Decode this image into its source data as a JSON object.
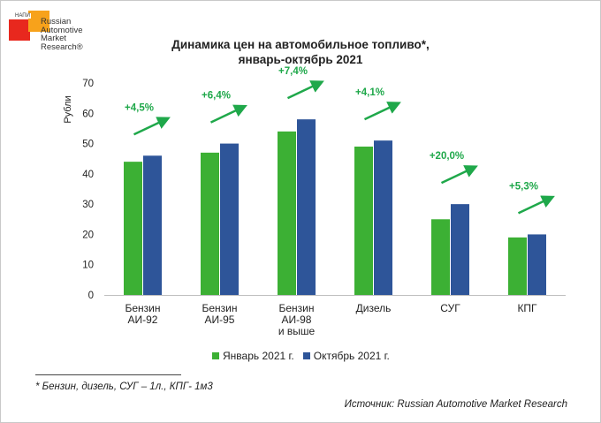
{
  "logo": {
    "badge": "НАПИ",
    "lines": [
      "Russian",
      "Automotive",
      "Market",
      "Research®"
    ]
  },
  "title": {
    "line1": "Динамика цен на автомобильное топливо*,",
    "line2": "январь-октябрь 2021"
  },
  "colors": {
    "january": "#3cb034",
    "october": "#2e5599",
    "arrow": "#1fa84a",
    "pct_text": "#1fa84a"
  },
  "chart_data": {
    "type": "bar",
    "title": "Динамика цен на автомобильное топливо*, январь-октябрь 2021",
    "ylabel": "Рубли",
    "xlabel": "",
    "ylim": [
      0,
      70
    ],
    "yticks": [
      "0",
      "10",
      "20",
      "30",
      "40",
      "50",
      "60",
      "70"
    ],
    "ytick_values": [
      0,
      10,
      20,
      30,
      40,
      50,
      60,
      70
    ],
    "categories": [
      [
        "Бензин",
        "АИ-92"
      ],
      [
        "Бензин",
        "АИ-95"
      ],
      [
        "Бензин",
        "АИ-98",
        "и выше"
      ],
      [
        "Дизель"
      ],
      [
        "СУГ"
      ],
      [
        "КПГ"
      ]
    ],
    "series": [
      {
        "name": "Январь 2021 г.",
        "values": [
          44,
          47,
          54,
          49,
          25,
          19
        ]
      },
      {
        "name": "Октябрь 2021 г.",
        "values": [
          46,
          50,
          58,
          51,
          30,
          20
        ]
      }
    ],
    "annotations": [
      "+4,5%",
      "+6,4%",
      "+7,4%",
      "+4,1%",
      "+20,0%",
      "+5,3%"
    ],
    "legend_position": "bottom"
  },
  "legend": {
    "january": "Январь 2021 г.",
    "october": "Октябрь 2021 г."
  },
  "footnote": "* Бензин, дизель, СУГ – 1л., КПГ- 1м3",
  "source": "Источник: Russian Automotive Market Research"
}
